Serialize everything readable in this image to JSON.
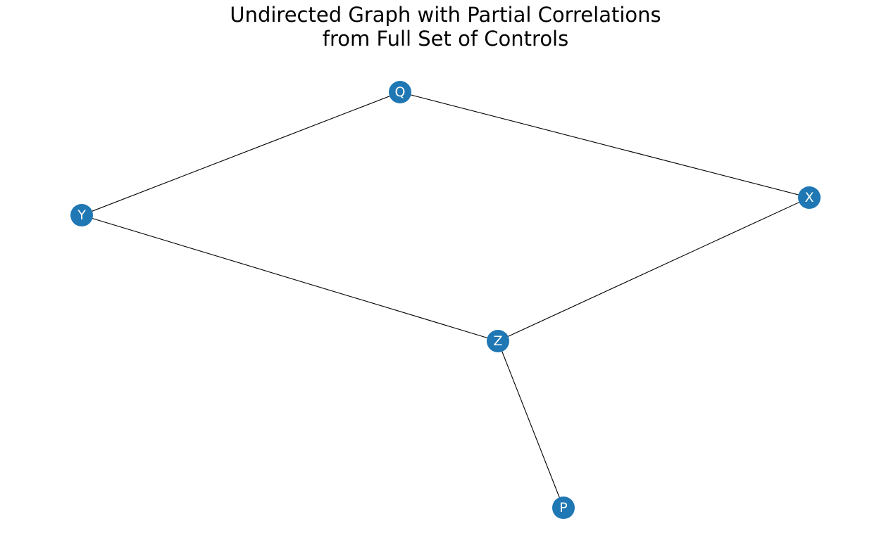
{
  "title": {
    "line1": "Undirected Graph with Partial Correlations",
    "line2": "from Full Set of Controls"
  },
  "colors": {
    "node_fill": "#1f77b4",
    "node_label": "#ffffff",
    "edge": "#000000",
    "background": "#ffffff"
  },
  "nodes": [
    {
      "id": "Q",
      "label": "Q"
    },
    {
      "id": "Y",
      "label": "Y"
    },
    {
      "id": "X",
      "label": "X"
    },
    {
      "id": "Z",
      "label": "Z"
    },
    {
      "id": "P",
      "label": "P"
    }
  ],
  "edges": [
    {
      "source": "Y",
      "target": "Q"
    },
    {
      "source": "Q",
      "target": "X"
    },
    {
      "source": "Y",
      "target": "Z"
    },
    {
      "source": "X",
      "target": "Z"
    },
    {
      "source": "Z",
      "target": "P"
    }
  ]
}
